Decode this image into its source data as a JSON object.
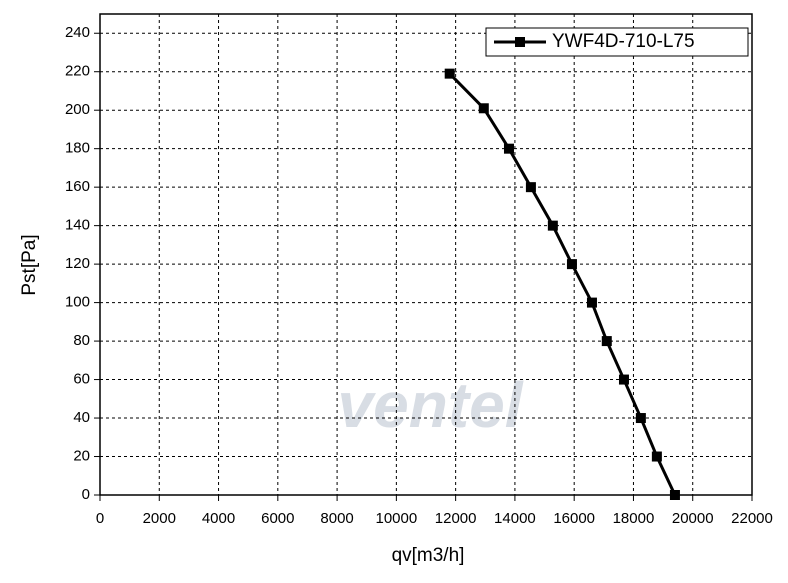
{
  "chart_data": {
    "type": "line",
    "x_label": "qv[m3/h]",
    "y_label": "Pst[Pa]",
    "watermark": "ventel",
    "x": [
      11800,
      12950,
      13800,
      14540,
      15280,
      15925,
      16600,
      17100,
      17680,
      18250,
      18790,
      19400
    ],
    "series": [
      {
        "name": "YWF4D-710-L75",
        "color": "#000000",
        "marker": "square",
        "values": [
          219,
          201,
          180,
          160,
          140,
          120,
          100,
          80,
          60,
          40,
          20,
          0
        ]
      }
    ],
    "xlim": [
      0,
      22000
    ],
    "ylim": [
      0,
      250
    ],
    "xticks": [
      0,
      2000,
      4000,
      6000,
      8000,
      10000,
      12000,
      14000,
      16000,
      18000,
      20000,
      22000
    ],
    "yticks": [
      0,
      20,
      40,
      60,
      80,
      100,
      120,
      140,
      160,
      180,
      200,
      220,
      240
    ],
    "grid": true,
    "legend": "upper right"
  }
}
